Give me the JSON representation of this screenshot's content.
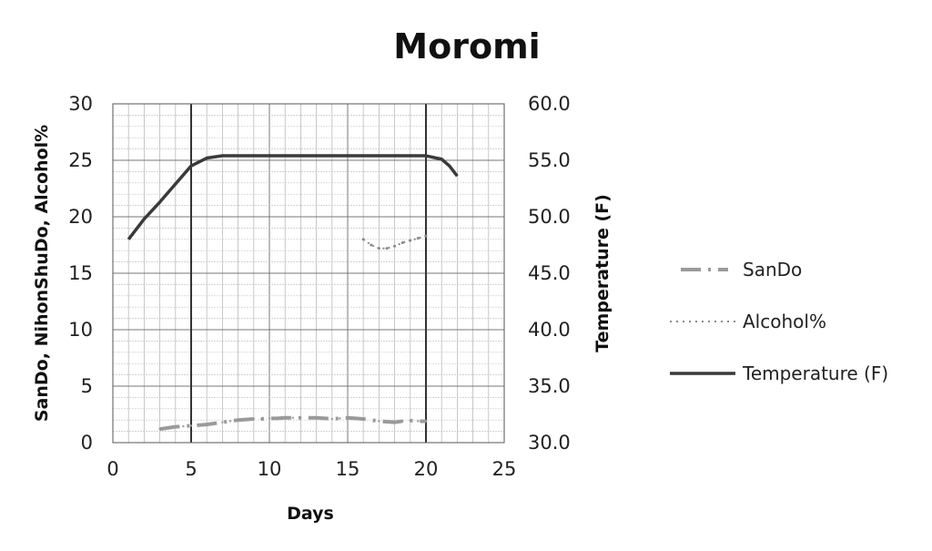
{
  "chart_data": {
    "type": "line",
    "title": "Moromi",
    "xlabel": "Days",
    "ylabel_left": "SanDo, NihonShuDo, Alcohol%",
    "ylabel_right": "Temperature (F)",
    "xlim": [
      0,
      25
    ],
    "ylim_left": [
      0,
      30
    ],
    "ylim_right": [
      30.0,
      60.0
    ],
    "x_ticks": [
      0,
      5,
      10,
      15,
      20,
      25
    ],
    "x_tick_labels": [
      "0",
      "5",
      "10",
      "15",
      "20",
      "25"
    ],
    "y_left_ticks": [
      0,
      5,
      10,
      15,
      20,
      25,
      30
    ],
    "y_left_tick_labels": [
      "0",
      "5",
      "10",
      "15",
      "20",
      "25",
      "30"
    ],
    "y_right_ticks": [
      30,
      35,
      40,
      45,
      50,
      55,
      60
    ],
    "y_right_tick_labels": [
      "30.0",
      "35.0",
      "40.0",
      "45.0",
      "50.0",
      "55.0",
      "60.0"
    ],
    "grid": true,
    "legend_position": "right",
    "reference_lines_x": [
      5,
      20
    ],
    "series": [
      {
        "name": "SanDo",
        "axis": "left",
        "style": "dash-dot",
        "color": "#9a9a9a",
        "x": [
          3,
          3.5,
          4,
          4.5,
          5,
          6,
          7,
          7.5,
          8,
          8.5,
          9,
          9.5,
          10,
          10.5,
          11,
          11.5,
          12,
          13,
          14,
          14.5,
          15,
          15.5,
          16,
          17,
          18,
          18.5,
          19,
          19.5,
          20
        ],
        "y": [
          1.2,
          1.3,
          1.4,
          1.45,
          1.5,
          1.6,
          1.8,
          1.9,
          2.0,
          2.05,
          2.1,
          2.1,
          2.15,
          2.15,
          2.2,
          2.2,
          2.2,
          2.2,
          2.1,
          2.15,
          2.2,
          2.15,
          2.1,
          1.9,
          1.8,
          1.9,
          1.95,
          1.9,
          1.9
        ]
      },
      {
        "name": "Alcohol%",
        "axis": "left",
        "style": "dotted",
        "color": "#8a8a8a",
        "x": [
          16,
          16.5,
          17,
          17.5,
          18,
          18.5,
          19,
          19.5,
          20
        ],
        "y": [
          18.0,
          17.5,
          17.2,
          17.2,
          17.4,
          17.7,
          17.9,
          18.1,
          18.3
        ]
      },
      {
        "name": "Temperature (F)",
        "axis": "right",
        "style": "solid",
        "color": "#3a3a3a",
        "x": [
          1,
          2,
          3,
          4,
          5,
          6,
          7,
          8,
          9,
          10,
          11,
          12,
          13,
          14,
          15,
          16,
          17,
          18,
          19,
          20,
          21,
          21.5,
          22
        ],
        "y": [
          48.0,
          49.8,
          51.3,
          52.9,
          54.5,
          55.2,
          55.4,
          55.4,
          55.4,
          55.4,
          55.4,
          55.4,
          55.4,
          55.4,
          55.4,
          55.4,
          55.4,
          55.4,
          55.4,
          55.4,
          55.1,
          54.5,
          53.6
        ]
      }
    ]
  }
}
